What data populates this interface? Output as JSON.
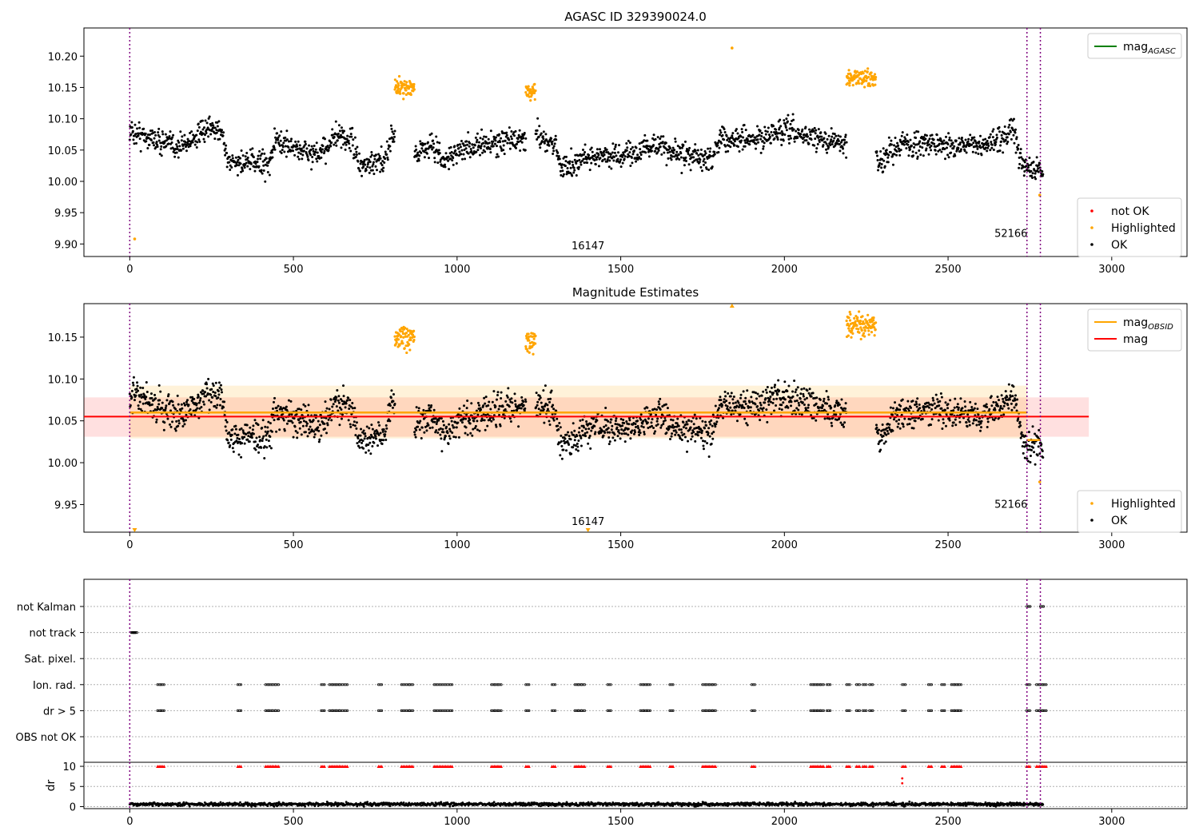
{
  "chart_data": [
    {
      "type": "scatter",
      "title": "AGASC ID 329390024.0",
      "xlim": [
        -140,
        3230
      ],
      "ylim": [
        9.88,
        10.245
      ],
      "xticks": [
        "0",
        "500",
        "1000",
        "1500",
        "2000",
        "2500",
        "3000"
      ],
      "yticks": [
        "9.90",
        "9.95",
        "10.00",
        "10.05",
        "10.10",
        "10.15",
        "10.20"
      ],
      "vlines": [
        0,
        2741,
        2782
      ],
      "annotations": [
        {
          "text": "16147",
          "x": 1400,
          "y": 9.88
        },
        {
          "text": "52166",
          "x": 2741,
          "y": 9.9
        }
      ],
      "legend_top": {
        "position": "upper right",
        "entries": [
          {
            "label": "mag",
            "sub": "AGASC",
            "color": "#008000"
          }
        ]
      },
      "legend_bottom": {
        "position": "lower right",
        "entries": [
          {
            "label": "not OK",
            "color": "#ff0000"
          },
          {
            "label": "Highlighted",
            "color": "#ffa500"
          },
          {
            "label": "OK",
            "color": "#000000"
          }
        ]
      },
      "series": [
        {
          "name": "OK",
          "color": "#000000",
          "trend": [
            [
              0,
              10.08
            ],
            [
              60,
              10.07
            ],
            [
              150,
              10.055
            ],
            [
              230,
              10.08
            ],
            [
              280,
              10.085
            ],
            [
              300,
              10.03
            ],
            [
              430,
              10.03
            ],
            [
              440,
              10.065
            ],
            [
              580,
              10.04
            ],
            [
              620,
              10.07
            ],
            [
              680,
              10.065
            ],
            [
              700,
              10.025
            ],
            [
              780,
              10.03
            ],
            [
              800,
              10.08
            ],
            [
              830,
              10.04
            ],
            [
              890,
              10.05
            ],
            [
              920,
              10.06
            ],
            [
              960,
              10.03
            ],
            [
              1000,
              10.05
            ],
            [
              1150,
              10.065
            ],
            [
              1250,
              10.07
            ],
            [
              1300,
              10.06
            ],
            [
              1320,
              10.02
            ],
            [
              1400,
              10.04
            ],
            [
              1500,
              10.04
            ],
            [
              1620,
              10.06
            ],
            [
              1650,
              10.045
            ],
            [
              1780,
              10.035
            ],
            [
              1800,
              10.07
            ],
            [
              1900,
              10.065
            ],
            [
              2000,
              10.08
            ],
            [
              2180,
              10.06
            ],
            [
              2200,
              10.065
            ],
            [
              2290,
              10.03
            ],
            [
              2350,
              10.06
            ],
            [
              2480,
              10.06
            ],
            [
              2600,
              10.055
            ],
            [
              2700,
              10.08
            ],
            [
              2730,
              10.02
            ],
            [
              2790,
              10.02
            ]
          ]
        },
        {
          "name": "Highlighted",
          "color": "#ffa500",
          "clusters": [
            [
              810,
              870,
              10.15
            ],
            [
              1210,
              1240,
              10.145
            ],
            [
              2190,
              2280,
              10.165
            ]
          ],
          "singles": [
            [
              1840,
              10.213
            ],
            [
              15,
              9.908
            ],
            [
              2780,
              9.978
            ]
          ]
        },
        {
          "name": "not OK",
          "color": "#ff0000",
          "points": []
        }
      ]
    },
    {
      "type": "scatter",
      "title": "Magnitude Estimates",
      "xlim": [
        -140,
        3230
      ],
      "ylim": [
        9.917,
        10.19
      ],
      "xticks": [
        "0",
        "500",
        "1000",
        "1500",
        "2000",
        "2500",
        "3000"
      ],
      "yticks": [
        "9.95",
        "10.00",
        "10.05",
        "10.10",
        "10.15"
      ],
      "vlines": [
        0,
        2741,
        2782
      ],
      "annotations": [
        {
          "text": "16147",
          "x": 1400,
          "y": 9.917
        },
        {
          "text": "52166",
          "x": 2741,
          "y": 9.95
        }
      ],
      "mag": {
        "value": 10.055,
        "band": [
          10.031,
          10.078
        ],
        "x": [
          -140,
          2930
        ],
        "color": "#ff0000"
      },
      "mag_obsid": [
        {
          "x": [
            0,
            2741
          ],
          "value": 10.06,
          "band": [
            10.029,
            10.092
          ]
        },
        {
          "x": [
            2741,
            2782
          ],
          "value": 10.027,
          "band": [
            10.027,
            10.027
          ]
        }
      ],
      "legend_top": {
        "position": "upper right",
        "entries": [
          {
            "label": "mag",
            "sub": "OBSID",
            "color": "#ffa500"
          },
          {
            "label": "mag",
            "sub": "",
            "color": "#ff0000"
          }
        ]
      },
      "legend_bottom": {
        "position": "lower right",
        "entries": [
          {
            "label": "Highlighted",
            "color": "#ffa500"
          },
          {
            "label": "OK",
            "color": "#000000"
          }
        ]
      }
    },
    {
      "type": "scatter",
      "title": "",
      "xlim": [
        -140,
        3230
      ],
      "xticks": [
        "0",
        "500",
        "1000",
        "1500",
        "2000",
        "2500",
        "3000"
      ],
      "flag_rows": [
        "not Kalman",
        "not track",
        "Sat. pixel.",
        "Ion. rad.",
        "dr > 5",
        "OBS not OK"
      ],
      "flag_points": {
        "not Kalman": [
          2741,
          2782
        ],
        "not track": [
          5,
          8,
          12
        ],
        "Sat. pixel.": [],
        "Ion. rad.": [
          85,
          95,
          330,
          415,
          425,
          435,
          445,
          585,
          610,
          620,
          630,
          640,
          655,
          760,
          830,
          845,
          855,
          930,
          945,
          960,
          975,
          1105,
          1115,
          1125,
          1210,
          1290,
          1360,
          1370,
          1380,
          1460,
          1560,
          1570,
          1580,
          1650,
          1750,
          1760,
          1770,
          1780,
          1900,
          2080,
          2090,
          2100,
          2110,
          2130,
          2190,
          2220,
          2240,
          2260,
          2360,
          2440,
          2480,
          2510,
          2520,
          2530,
          2740,
          2770,
          2780,
          2790
        ],
        "dr > 5": [
          85,
          95,
          330,
          415,
          425,
          435,
          445,
          585,
          610,
          620,
          630,
          640,
          655,
          760,
          830,
          845,
          855,
          930,
          945,
          960,
          975,
          1105,
          1115,
          1125,
          1210,
          1290,
          1360,
          1370,
          1380,
          1460,
          1560,
          1570,
          1580,
          1650,
          1750,
          1760,
          1770,
          1780,
          1900,
          2080,
          2090,
          2100,
          2110,
          2130,
          2190,
          2220,
          2240,
          2260,
          2360,
          2440,
          2480,
          2510,
          2520,
          2530,
          2740,
          2770,
          2780,
          2790
        ],
        "OBS not OK": []
      },
      "dr": {
        "ylabel": "dr",
        "yticks": [
          "0",
          "5",
          "10"
        ],
        "ylim": [
          -0.5,
          11
        ],
        "clipped_at": 10,
        "outliers": [
          [
            2360,
            7
          ],
          [
            2360,
            5.8
          ]
        ]
      },
      "vlines": [
        0,
        2741,
        2782
      ]
    }
  ]
}
